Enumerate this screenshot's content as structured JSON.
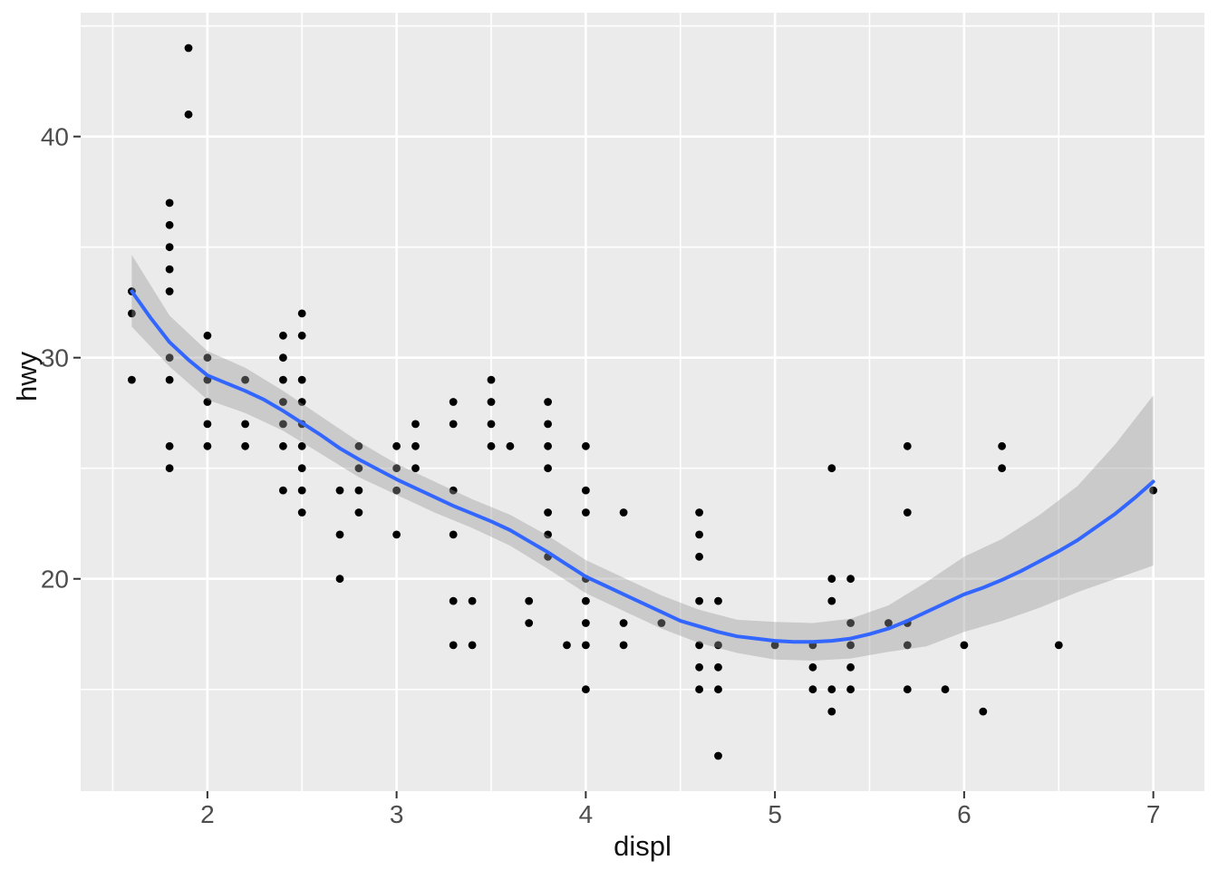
{
  "chart_data": {
    "type": "scatter",
    "title": "",
    "xlabel": "displ",
    "ylabel": "hwy",
    "x_domain": [
      1.33,
      7.27
    ],
    "y_domain": [
      10.4,
      45.6
    ],
    "x_major_ticks": [
      2,
      3,
      4,
      5,
      6,
      7
    ],
    "x_minor_ticks": [
      1.5,
      2.5,
      3.5,
      4.5,
      5.5,
      6.5
    ],
    "y_major_ticks": [
      20,
      30,
      40
    ],
    "y_minor_ticks": [
      15,
      25,
      35,
      45
    ],
    "grid": true,
    "legend": "none",
    "points": [
      [
        1.6,
        29
      ],
      [
        1.6,
        32
      ],
      [
        1.6,
        33
      ],
      [
        1.8,
        25
      ],
      [
        1.8,
        26
      ],
      [
        1.8,
        29
      ],
      [
        1.8,
        30
      ],
      [
        1.8,
        33
      ],
      [
        1.8,
        34
      ],
      [
        1.8,
        35
      ],
      [
        1.8,
        36
      ],
      [
        1.8,
        37
      ],
      [
        1.9,
        41
      ],
      [
        1.9,
        44
      ],
      [
        2.0,
        26
      ],
      [
        2.0,
        27
      ],
      [
        2.0,
        28
      ],
      [
        2.0,
        29
      ],
      [
        2.0,
        30
      ],
      [
        2.0,
        31
      ],
      [
        2.2,
        26
      ],
      [
        2.2,
        27
      ],
      [
        2.2,
        29
      ],
      [
        2.4,
        24
      ],
      [
        2.4,
        26
      ],
      [
        2.4,
        27
      ],
      [
        2.4,
        28
      ],
      [
        2.4,
        29
      ],
      [
        2.4,
        30
      ],
      [
        2.4,
        31
      ],
      [
        2.5,
        23
      ],
      [
        2.5,
        24
      ],
      [
        2.5,
        25
      ],
      [
        2.5,
        26
      ],
      [
        2.5,
        27
      ],
      [
        2.5,
        28
      ],
      [
        2.5,
        29
      ],
      [
        2.5,
        31
      ],
      [
        2.5,
        32
      ],
      [
        2.7,
        20
      ],
      [
        2.7,
        22
      ],
      [
        2.7,
        24
      ],
      [
        2.8,
        23
      ],
      [
        2.8,
        24
      ],
      [
        2.8,
        25
      ],
      [
        2.8,
        26
      ],
      [
        3.0,
        22
      ],
      [
        3.0,
        24
      ],
      [
        3.0,
        25
      ],
      [
        3.0,
        26
      ],
      [
        3.1,
        25
      ],
      [
        3.1,
        26
      ],
      [
        3.1,
        27
      ],
      [
        3.3,
        17
      ],
      [
        3.3,
        19
      ],
      [
        3.3,
        22
      ],
      [
        3.3,
        24
      ],
      [
        3.3,
        27
      ],
      [
        3.3,
        28
      ],
      [
        3.4,
        17
      ],
      [
        3.4,
        19
      ],
      [
        3.5,
        26
      ],
      [
        3.5,
        27
      ],
      [
        3.5,
        28
      ],
      [
        3.5,
        29
      ],
      [
        3.6,
        26
      ],
      [
        3.7,
        18
      ],
      [
        3.7,
        19
      ],
      [
        3.8,
        21
      ],
      [
        3.8,
        22
      ],
      [
        3.8,
        23
      ],
      [
        3.8,
        25
      ],
      [
        3.8,
        26
      ],
      [
        3.8,
        27
      ],
      [
        3.8,
        28
      ],
      [
        3.9,
        17
      ],
      [
        4.0,
        15
      ],
      [
        4.0,
        17
      ],
      [
        4.0,
        18
      ],
      [
        4.0,
        19
      ],
      [
        4.0,
        20
      ],
      [
        4.0,
        23
      ],
      [
        4.0,
        24
      ],
      [
        4.0,
        26
      ],
      [
        4.2,
        17
      ],
      [
        4.2,
        18
      ],
      [
        4.2,
        23
      ],
      [
        4.4,
        18
      ],
      [
        4.6,
        15
      ],
      [
        4.6,
        16
      ],
      [
        4.6,
        17
      ],
      [
        4.6,
        19
      ],
      [
        4.6,
        21
      ],
      [
        4.6,
        22
      ],
      [
        4.6,
        23
      ],
      [
        4.7,
        12
      ],
      [
        4.7,
        15
      ],
      [
        4.7,
        16
      ],
      [
        4.7,
        17
      ],
      [
        4.7,
        19
      ],
      [
        5.0,
        17
      ],
      [
        5.2,
        15
      ],
      [
        5.2,
        16
      ],
      [
        5.2,
        17
      ],
      [
        5.3,
        14
      ],
      [
        5.3,
        15
      ],
      [
        5.3,
        19
      ],
      [
        5.3,
        20
      ],
      [
        5.3,
        25
      ],
      [
        5.4,
        15
      ],
      [
        5.4,
        16
      ],
      [
        5.4,
        17
      ],
      [
        5.4,
        18
      ],
      [
        5.4,
        20
      ],
      [
        5.6,
        18
      ],
      [
        5.7,
        15
      ],
      [
        5.7,
        17
      ],
      [
        5.7,
        18
      ],
      [
        5.7,
        23
      ],
      [
        5.7,
        26
      ],
      [
        5.9,
        15
      ],
      [
        6.0,
        17
      ],
      [
        6.1,
        14
      ],
      [
        6.2,
        25
      ],
      [
        6.2,
        26
      ],
      [
        6.5,
        17
      ],
      [
        7.0,
        24
      ]
    ],
    "smooth_line": [
      [
        1.6,
        33.0
      ],
      [
        1.7,
        31.8
      ],
      [
        1.8,
        30.7
      ],
      [
        1.9,
        29.9
      ],
      [
        2.0,
        29.2
      ],
      [
        2.1,
        28.85
      ],
      [
        2.2,
        28.5
      ],
      [
        2.3,
        28.1
      ],
      [
        2.4,
        27.6
      ],
      [
        2.5,
        27.05
      ],
      [
        2.6,
        26.5
      ],
      [
        2.7,
        25.9
      ],
      [
        2.8,
        25.4
      ],
      [
        2.9,
        24.95
      ],
      [
        3.0,
        24.5
      ],
      [
        3.1,
        24.1
      ],
      [
        3.2,
        23.7
      ],
      [
        3.3,
        23.3
      ],
      [
        3.4,
        22.95
      ],
      [
        3.5,
        22.6
      ],
      [
        3.6,
        22.2
      ],
      [
        3.7,
        21.7
      ],
      [
        3.8,
        21.2
      ],
      [
        3.9,
        20.65
      ],
      [
        4.0,
        20.1
      ],
      [
        4.1,
        19.7
      ],
      [
        4.2,
        19.3
      ],
      [
        4.3,
        18.9
      ],
      [
        4.4,
        18.5
      ],
      [
        4.5,
        18.1
      ],
      [
        4.6,
        17.85
      ],
      [
        4.7,
        17.6
      ],
      [
        4.8,
        17.4
      ],
      [
        4.9,
        17.3
      ],
      [
        5.0,
        17.2
      ],
      [
        5.1,
        17.15
      ],
      [
        5.2,
        17.15
      ],
      [
        5.3,
        17.2
      ],
      [
        5.4,
        17.3
      ],
      [
        5.5,
        17.5
      ],
      [
        5.6,
        17.75
      ],
      [
        5.7,
        18.1
      ],
      [
        5.8,
        18.5
      ],
      [
        5.9,
        18.9
      ],
      [
        6.0,
        19.3
      ],
      [
        6.1,
        19.6
      ],
      [
        6.2,
        19.95
      ],
      [
        6.3,
        20.35
      ],
      [
        6.4,
        20.8
      ],
      [
        6.5,
        21.25
      ],
      [
        6.6,
        21.75
      ],
      [
        6.7,
        22.35
      ],
      [
        6.8,
        22.95
      ],
      [
        6.9,
        23.65
      ],
      [
        7.0,
        24.4
      ]
    ],
    "ribbon": [
      [
        1.6,
        31.4,
        34.65
      ],
      [
        1.8,
        29.6,
        31.9
      ],
      [
        2.0,
        28.1,
        30.3
      ],
      [
        2.2,
        27.5,
        29.55
      ],
      [
        2.4,
        26.7,
        28.5
      ],
      [
        2.6,
        25.65,
        27.35
      ],
      [
        2.8,
        24.6,
        26.2
      ],
      [
        3.0,
        23.8,
        25.2
      ],
      [
        3.2,
        23.0,
        24.4
      ],
      [
        3.4,
        22.3,
        23.6
      ],
      [
        3.6,
        21.5,
        22.9
      ],
      [
        3.8,
        20.45,
        21.95
      ],
      [
        4.0,
        19.35,
        20.85
      ],
      [
        4.2,
        18.55,
        20.05
      ],
      [
        4.4,
        17.75,
        19.25
      ],
      [
        4.6,
        17.1,
        18.6
      ],
      [
        4.8,
        16.65,
        18.15
      ],
      [
        5.0,
        16.35,
        18.05
      ],
      [
        5.2,
        16.3,
        18.0
      ],
      [
        5.4,
        16.4,
        18.2
      ],
      [
        5.6,
        16.7,
        18.8
      ],
      [
        5.8,
        16.95,
        19.85
      ],
      [
        6.0,
        17.6,
        21.0
      ],
      [
        6.2,
        18.1,
        21.8
      ],
      [
        6.4,
        18.7,
        22.9
      ],
      [
        6.6,
        19.4,
        24.2
      ],
      [
        6.8,
        20.0,
        26.1
      ],
      [
        7.0,
        20.6,
        28.3
      ]
    ],
    "style": {
      "outer_bg": "#FFFFFF",
      "panel_bg": "#EBEBEB",
      "grid_color": "#FFFFFF",
      "point_color": "#000000",
      "line_color": "#3366FF",
      "ribbon_color": "#999999",
      "ribbon_opacity": 0.4,
      "tick_label_color": "#4D4D4D",
      "axis_title_color": "#111111",
      "tick_mark_color": "#333333"
    }
  }
}
